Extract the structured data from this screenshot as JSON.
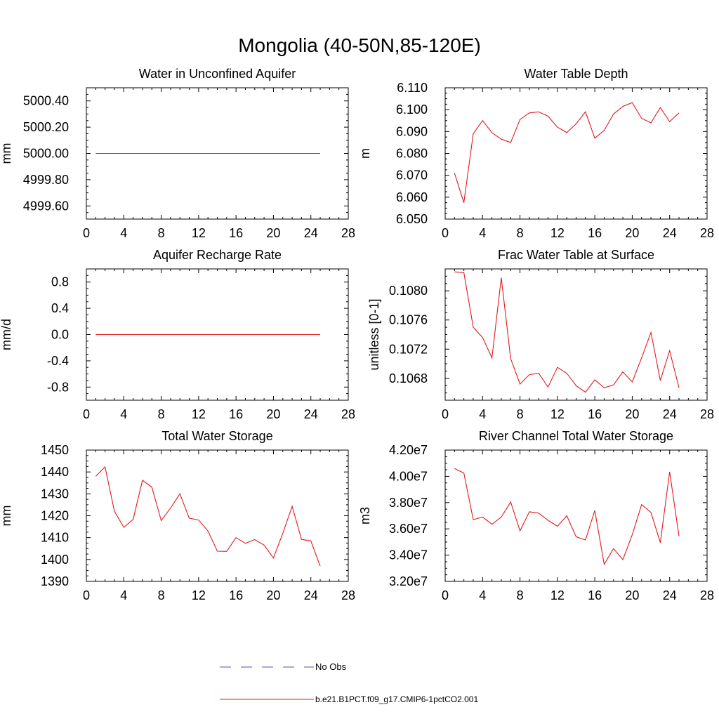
{
  "figure": {
    "title": "Mongolia (40-50N,85-120E)",
    "legend": [
      {
        "label": "No Obs",
        "color": "#4a5aa8",
        "style": "dashed"
      },
      {
        "label": "b.e21.B1PCT.f09_g17.CMIP6-1pctCO2.001",
        "color": "#e41a1c",
        "style": "solid"
      }
    ]
  },
  "chart_data": [
    {
      "type": "line",
      "title": "Water in Unconfined Aquifer",
      "ylabel": "mm",
      "xlim": [
        0,
        28
      ],
      "ylim": [
        4999.5,
        5000.5
      ],
      "xticks": [
        0,
        4,
        8,
        12,
        16,
        20,
        24,
        28
      ],
      "yticks": [
        4999.6,
        4999.8,
        5000.0,
        5000.2,
        5000.4
      ],
      "ytick_labels": [
        "4999.60",
        "4999.80",
        "5000.00",
        "5000.20",
        "5000.40"
      ],
      "color": "#e41a1c",
      "x": [
        1,
        2,
        3,
        4,
        5,
        6,
        7,
        8,
        9,
        10,
        11,
        12,
        13,
        14,
        15,
        16,
        17,
        18,
        19,
        20,
        21,
        22,
        23,
        24,
        25
      ],
      "values": [
        5000,
        5000,
        5000,
        5000,
        5000,
        5000,
        5000,
        5000,
        5000,
        5000,
        5000,
        5000,
        5000,
        5000,
        5000,
        5000,
        5000,
        5000,
        5000,
        5000,
        5000,
        5000,
        5000,
        5000,
        5000
      ]
    },
    {
      "type": "line",
      "title": "Water Table Depth",
      "ylabel": "m",
      "xlim": [
        0,
        28
      ],
      "ylim": [
        6.05,
        6.11
      ],
      "xticks": [
        0,
        4,
        8,
        12,
        16,
        20,
        24,
        28
      ],
      "yticks": [
        6.05,
        6.06,
        6.07,
        6.08,
        6.09,
        6.1,
        6.11
      ],
      "ytick_labels": [
        "6.050",
        "6.060",
        "6.070",
        "6.080",
        "6.090",
        "6.100",
        "6.110"
      ],
      "color": "#e41a1c",
      "x": [
        1,
        2,
        3,
        4,
        5,
        6,
        7,
        8,
        9,
        10,
        11,
        12,
        13,
        14,
        15,
        16,
        17,
        18,
        19,
        20,
        21,
        22,
        23,
        24,
        25
      ],
      "values": [
        6.071,
        6.0575,
        6.089,
        6.095,
        6.0895,
        6.0865,
        6.085,
        6.0955,
        6.0985,
        6.099,
        6.097,
        6.092,
        6.0895,
        6.0935,
        6.099,
        6.087,
        6.0905,
        6.098,
        6.1015,
        6.1032,
        6.096,
        6.094,
        6.101,
        6.0945,
        6.0985
      ]
    },
    {
      "type": "line",
      "title": "Aquifer Recharge Rate",
      "ylabel": "mm/d",
      "xlim": [
        0,
        28
      ],
      "ylim": [
        -1,
        1
      ],
      "xticks": [
        0,
        4,
        8,
        12,
        16,
        20,
        24,
        28
      ],
      "yticks": [
        -0.8,
        -0.4,
        0.0,
        0.4,
        0.8
      ],
      "ytick_labels": [
        "-0.8",
        "-0.4",
        "0.0",
        "0.4",
        "0.8"
      ],
      "color": "#e41a1c",
      "x": [
        1,
        2,
        3,
        4,
        5,
        6,
        7,
        8,
        9,
        10,
        11,
        12,
        13,
        14,
        15,
        16,
        17,
        18,
        19,
        20,
        21,
        22,
        23,
        24,
        25
      ],
      "values": [
        0,
        0,
        0,
        0,
        0,
        0,
        0,
        0,
        0,
        0,
        0,
        0,
        0,
        0,
        0,
        0,
        0,
        0,
        0,
        0,
        0,
        0,
        0,
        0,
        0
      ]
    },
    {
      "type": "line",
      "title": "Frac Water Table at Surface",
      "ylabel": "unitless [0-1]",
      "xlim": [
        0,
        28
      ],
      "ylim": [
        0.1065,
        0.1083
      ],
      "xticks": [
        0,
        4,
        8,
        12,
        16,
        20,
        24,
        28
      ],
      "yticks": [
        0.1068,
        0.1072,
        0.1076,
        0.108
      ],
      "ytick_labels": [
        "0.1068",
        "0.1072",
        "0.1076",
        "0.1080"
      ],
      "color": "#e41a1c",
      "x": [
        1,
        2,
        3,
        4,
        5,
        6,
        7,
        8,
        9,
        10,
        11,
        12,
        13,
        14,
        15,
        16,
        17,
        18,
        19,
        20,
        21,
        22,
        23,
        24,
        25
      ],
      "values": [
        0.10826,
        0.10825,
        0.1075,
        0.10736,
        0.10708,
        0.10818,
        0.10707,
        0.10672,
        0.10685,
        0.10687,
        0.10668,
        0.10695,
        0.10687,
        0.1067,
        0.10661,
        0.10678,
        0.10667,
        0.10671,
        0.10689,
        0.10675,
        0.10708,
        0.10743,
        0.10677,
        0.10718,
        0.10667
      ]
    },
    {
      "type": "line",
      "title": "Total Water Storage",
      "ylabel": "mm",
      "xlim": [
        0,
        28
      ],
      "ylim": [
        1390,
        1450
      ],
      "xticks": [
        0,
        4,
        8,
        12,
        16,
        20,
        24,
        28
      ],
      "yticks": [
        1390,
        1400,
        1410,
        1420,
        1430,
        1440,
        1450
      ],
      "ytick_labels": [
        "1390",
        "1400",
        "1410",
        "1420",
        "1430",
        "1440",
        "1450"
      ],
      "color": "#e41a1c",
      "x": [
        1,
        2,
        3,
        4,
        5,
        6,
        7,
        8,
        9,
        10,
        11,
        12,
        13,
        14,
        15,
        16,
        17,
        18,
        19,
        20,
        21,
        22,
        23,
        24,
        25
      ],
      "values": [
        1438,
        1442.3,
        1422,
        1414.7,
        1418.3,
        1436.2,
        1433,
        1417.8,
        1423.5,
        1430,
        1418.9,
        1418,
        1413,
        1403.8,
        1403.7,
        1410,
        1407.4,
        1409.1,
        1406.6,
        1400.7,
        1412,
        1424.3,
        1409.2,
        1408.5,
        1397
      ]
    },
    {
      "type": "line",
      "title": "River Channel Total Water Storage",
      "ylabel": "m3",
      "xlim": [
        0,
        28
      ],
      "ylim": [
        32000000,
        42000000
      ],
      "xticks": [
        0,
        4,
        8,
        12,
        16,
        20,
        24,
        28
      ],
      "yticks": [
        32000000,
        34000000,
        36000000,
        38000000,
        40000000,
        42000000
      ],
      "ytick_labels": [
        "3.20e7",
        "3.40e7",
        "3.60e7",
        "3.80e7",
        "4.00e7",
        "4.20e7"
      ],
      "color": "#e41a1c",
      "x": [
        1,
        2,
        3,
        4,
        5,
        6,
        7,
        8,
        9,
        10,
        11,
        12,
        13,
        14,
        15,
        16,
        17,
        18,
        19,
        20,
        21,
        22,
        23,
        24,
        25
      ],
      "values": [
        40600000,
        40250000,
        36700000,
        36900000,
        36350000,
        36900000,
        38050000,
        35850000,
        37300000,
        37200000,
        36650000,
        36200000,
        37000000,
        35400000,
        35150000,
        37400000,
        33300000,
        34500000,
        33650000,
        35550000,
        37850000,
        37250000,
        34950000,
        40350000,
        35450000
      ]
    }
  ]
}
